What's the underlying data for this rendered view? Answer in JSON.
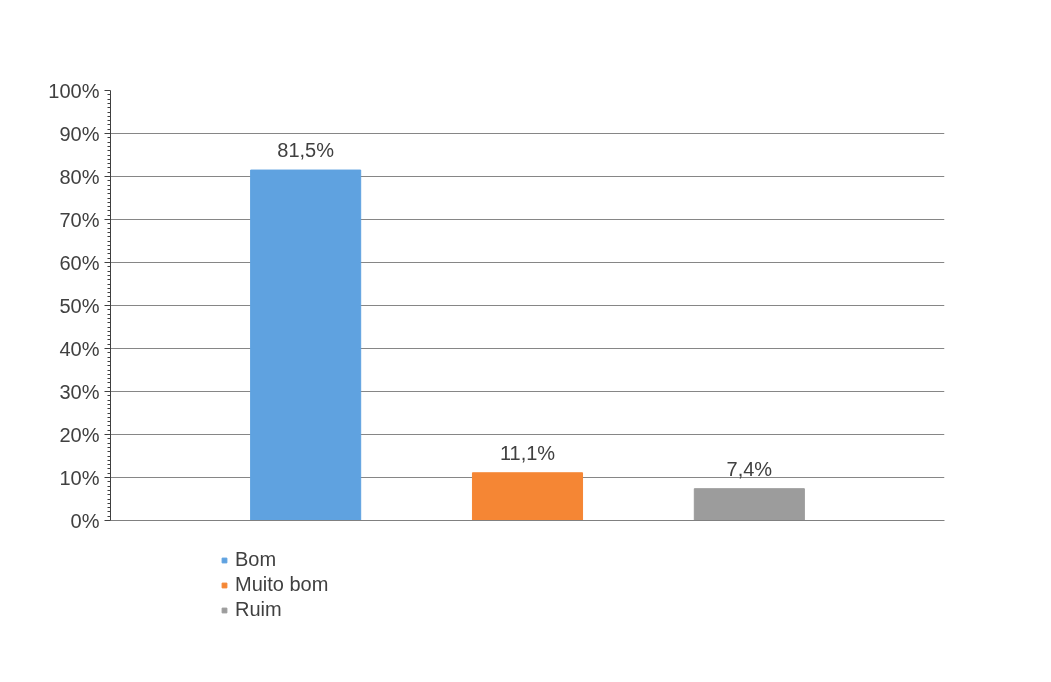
{
  "chart_data": {
    "type": "bar",
    "categories": [
      null
    ],
    "series": [
      {
        "name": "Bom",
        "color": "#5fa2e0",
        "values": [
          81.5
        ],
        "value_labels": [
          "81,5%"
        ]
      },
      {
        "name": "Muito bom",
        "color": "#f58634",
        "values": [
          11.1
        ],
        "value_labels": [
          "11,1%"
        ]
      },
      {
        "name": "Ruim",
        "color": "#9c9c9c",
        "values": [
          7.4
        ],
        "value_labels": [
          "7,4%"
        ]
      }
    ],
    "ylim": [
      0,
      100
    ],
    "yticks": [
      {
        "value": 0,
        "label": "0%"
      },
      {
        "value": 10,
        "label": "10%"
      },
      {
        "value": 20,
        "label": "20%"
      },
      {
        "value": 30,
        "label": "30%"
      },
      {
        "value": 40,
        "label": "40%"
      },
      {
        "value": 50,
        "label": "50%"
      },
      {
        "value": 60,
        "label": "60%"
      },
      {
        "value": 70,
        "label": "70%"
      },
      {
        "value": 80,
        "label": "80%"
      },
      {
        "value": 90,
        "label": "90%"
      },
      {
        "value": 100,
        "label": "100%"
      }
    ],
    "grid": "y",
    "legend": "bottom"
  }
}
